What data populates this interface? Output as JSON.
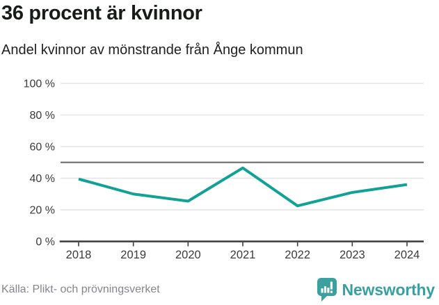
{
  "chart_data": {
    "type": "line",
    "title": "36 procent är kvinnor",
    "subtitle": "Andel kvinnor av mönstrande från Ånge kommun",
    "x": [
      2018,
      2019,
      2020,
      2021,
      2022,
      2023,
      2024
    ],
    "series": [
      {
        "name": "Andel kvinnor av mönstrande (%)",
        "values": [
          39.5,
          30,
          25.5,
          46.5,
          22.5,
          31,
          36
        ],
        "color": "#12a195"
      }
    ],
    "ylim": [
      0,
      100
    ],
    "yticks": [
      0,
      20,
      40,
      60,
      80,
      100
    ],
    "ytick_suffix": " %",
    "xlabel": "",
    "ylabel": "",
    "grid": true,
    "legend_position": "none",
    "reference_line": {
      "value": 50,
      "color": "#73737a"
    },
    "source": "Källa: Plikt- och prövningsverket"
  },
  "footer": {
    "brand": "Newsworthy"
  },
  "colors": {
    "accent": "#12a195",
    "brand": "#38a0a0",
    "grid": "#e4e4e4",
    "axis": "#3a3a3a",
    "reference": "#73737a",
    "title_text": "#181c18",
    "muted_text": "#85858f"
  }
}
